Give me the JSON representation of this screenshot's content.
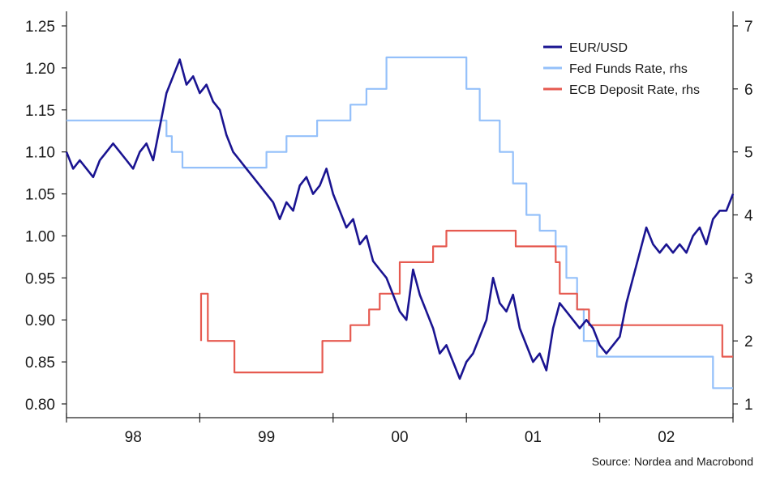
{
  "chart_data": {
    "type": "line",
    "title": "",
    "xlabel": "",
    "ylabel": "",
    "y_left": {
      "range": [
        0.8,
        1.25
      ],
      "ticks": [
        "0.80",
        "0.85",
        "0.90",
        "0.95",
        "1.00",
        "1.05",
        "1.10",
        "1.15",
        "1.20",
        "1.25"
      ]
    },
    "y_right": {
      "range": [
        1,
        7
      ],
      "ticks": [
        "1",
        "2",
        "3",
        "4",
        "5",
        "6",
        "7"
      ]
    },
    "x_range": [
      1997.5,
      2002.5
    ],
    "x_ticks": [
      1998,
      1999,
      2000,
      2001,
      2002,
      2003
    ],
    "x_labels": [
      {
        "label": "98",
        "at": 1998.0
      },
      {
        "label": "99",
        "at": 1999.0
      },
      {
        "label": "00",
        "at": 2000.0
      },
      {
        "label": "01",
        "at": 2001.0
      },
      {
        "label": "02",
        "at": 2002.0
      }
    ],
    "grid": false,
    "legend_position": "top-right",
    "series": [
      {
        "name": "EUR/USD",
        "axis": "left",
        "color": "#1a1491",
        "style": "line",
        "points": [
          [
            1997.5,
            1.1
          ],
          [
            1997.55,
            1.08
          ],
          [
            1997.6,
            1.09
          ],
          [
            1997.65,
            1.08
          ],
          [
            1997.7,
            1.07
          ],
          [
            1997.75,
            1.09
          ],
          [
            1997.8,
            1.1
          ],
          [
            1997.85,
            1.11
          ],
          [
            1997.9,
            1.1
          ],
          [
            1997.95,
            1.09
          ],
          [
            1998.0,
            1.08
          ],
          [
            1998.05,
            1.1
          ],
          [
            1998.1,
            1.11
          ],
          [
            1998.15,
            1.09
          ],
          [
            1998.2,
            1.13
          ],
          [
            1998.25,
            1.17
          ],
          [
            1998.3,
            1.19
          ],
          [
            1998.35,
            1.21
          ],
          [
            1998.4,
            1.18
          ],
          [
            1998.45,
            1.19
          ],
          [
            1998.5,
            1.17
          ],
          [
            1998.55,
            1.18
          ],
          [
            1998.6,
            1.16
          ],
          [
            1998.65,
            1.15
          ],
          [
            1998.7,
            1.12
          ],
          [
            1998.75,
            1.1
          ],
          [
            1998.8,
            1.09
          ],
          [
            1998.85,
            1.08
          ],
          [
            1998.9,
            1.07
          ],
          [
            1998.95,
            1.06
          ],
          [
            1999.0,
            1.05
          ],
          [
            1999.05,
            1.04
          ],
          [
            1999.1,
            1.02
          ],
          [
            1999.15,
            1.04
          ],
          [
            1999.2,
            1.03
          ],
          [
            1999.25,
            1.06
          ],
          [
            1999.3,
            1.07
          ],
          [
            1999.35,
            1.05
          ],
          [
            1999.4,
            1.06
          ],
          [
            1999.45,
            1.08
          ],
          [
            1999.5,
            1.05
          ],
          [
            1999.55,
            1.03
          ],
          [
            1999.6,
            1.01
          ],
          [
            1999.65,
            1.02
          ],
          [
            1999.7,
            0.99
          ],
          [
            1999.75,
            1.0
          ],
          [
            1999.8,
            0.97
          ],
          [
            1999.85,
            0.96
          ],
          [
            1999.9,
            0.95
          ],
          [
            1999.95,
            0.93
          ],
          [
            2000.0,
            0.91
          ],
          [
            2000.05,
            0.9
          ],
          [
            2000.1,
            0.96
          ],
          [
            2000.15,
            0.93
          ],
          [
            2000.2,
            0.91
          ],
          [
            2000.25,
            0.89
          ],
          [
            2000.3,
            0.86
          ],
          [
            2000.35,
            0.87
          ],
          [
            2000.4,
            0.85
          ],
          [
            2000.45,
            0.83
          ],
          [
            2000.5,
            0.85
          ],
          [
            2000.55,
            0.86
          ],
          [
            2000.6,
            0.88
          ],
          [
            2000.65,
            0.9
          ],
          [
            2000.7,
            0.95
          ],
          [
            2000.75,
            0.92
          ],
          [
            2000.8,
            0.91
          ],
          [
            2000.85,
            0.93
          ],
          [
            2000.9,
            0.89
          ],
          [
            2000.95,
            0.87
          ],
          [
            2001.0,
            0.85
          ],
          [
            2001.05,
            0.86
          ],
          [
            2001.1,
            0.84
          ],
          [
            2001.15,
            0.89
          ],
          [
            2001.2,
            0.92
          ],
          [
            2001.25,
            0.91
          ],
          [
            2001.3,
            0.9
          ],
          [
            2001.35,
            0.89
          ],
          [
            2001.4,
            0.9
          ],
          [
            2001.45,
            0.89
          ],
          [
            2001.5,
            0.87
          ],
          [
            2001.55,
            0.86
          ],
          [
            2001.6,
            0.87
          ],
          [
            2001.65,
            0.88
          ],
          [
            2001.7,
            0.92
          ],
          [
            2001.75,
            0.95
          ],
          [
            2001.8,
            0.98
          ],
          [
            2001.85,
            1.01
          ],
          [
            2001.9,
            0.99
          ],
          [
            2001.95,
            0.98
          ],
          [
            2002.0,
            0.99
          ],
          [
            2002.05,
            0.98
          ],
          [
            2002.1,
            0.99
          ],
          [
            2002.15,
            0.98
          ],
          [
            2002.2,
            1.0
          ],
          [
            2002.25,
            1.01
          ],
          [
            2002.3,
            0.99
          ],
          [
            2002.35,
            1.02
          ],
          [
            2002.4,
            1.03
          ],
          [
            2002.45,
            1.03
          ],
          [
            2002.5,
            1.05
          ]
        ]
      },
      {
        "name": "Fed Funds Rate, rhs",
        "axis": "right",
        "color": "#94c0fa",
        "style": "step",
        "points": [
          [
            1997.5,
            5.5
          ],
          [
            1998.25,
            5.5
          ],
          [
            1998.25,
            5.25
          ],
          [
            1998.29,
            5.25
          ],
          [
            1998.29,
            5.0
          ],
          [
            1998.37,
            5.0
          ],
          [
            1998.37,
            4.75
          ],
          [
            1999.0,
            4.75
          ],
          [
            1999.0,
            5.0
          ],
          [
            1999.15,
            5.0
          ],
          [
            1999.15,
            5.25
          ],
          [
            1999.38,
            5.25
          ],
          [
            1999.38,
            5.5
          ],
          [
            1999.63,
            5.5
          ],
          [
            1999.63,
            5.75
          ],
          [
            1999.75,
            5.75
          ],
          [
            1999.75,
            6.0
          ],
          [
            1999.9,
            6.0
          ],
          [
            1999.9,
            6.5
          ],
          [
            2000.5,
            6.5
          ],
          [
            2000.5,
            6.0
          ],
          [
            2000.6,
            6.0
          ],
          [
            2000.6,
            5.5
          ],
          [
            2000.75,
            5.5
          ],
          [
            2000.75,
            5.0
          ],
          [
            2000.85,
            5.0
          ],
          [
            2000.85,
            4.5
          ],
          [
            2000.95,
            4.5
          ],
          [
            2000.95,
            4.0
          ],
          [
            2001.05,
            4.0
          ],
          [
            2001.05,
            3.75
          ],
          [
            2001.17,
            3.75
          ],
          [
            2001.17,
            3.5
          ],
          [
            2001.25,
            3.5
          ],
          [
            2001.25,
            3.0
          ],
          [
            2001.33,
            3.0
          ],
          [
            2001.33,
            2.5
          ],
          [
            2001.38,
            2.5
          ],
          [
            2001.38,
            2.0
          ],
          [
            2001.48,
            2.0
          ],
          [
            2001.48,
            1.75
          ],
          [
            2002.35,
            1.75
          ],
          [
            2002.35,
            1.25
          ],
          [
            2002.5,
            1.25
          ]
        ]
      },
      {
        "name": "ECB Deposit Rate, rhs",
        "axis": "right",
        "color": "#e65a50",
        "style": "step",
        "points": [
          [
            1998.51,
            2.0
          ],
          [
            1998.51,
            2.75
          ],
          [
            1998.56,
            2.75
          ],
          [
            1998.56,
            2.0
          ],
          [
            1998.76,
            2.0
          ],
          [
            1998.76,
            1.5
          ],
          [
            1999.42,
            1.5
          ],
          [
            1999.42,
            2.0
          ],
          [
            1999.63,
            2.0
          ],
          [
            1999.63,
            2.25
          ],
          [
            1999.77,
            2.25
          ],
          [
            1999.77,
            2.5
          ],
          [
            1999.85,
            2.5
          ],
          [
            1999.85,
            2.75
          ],
          [
            2000.0,
            2.75
          ],
          [
            2000.0,
            3.25
          ],
          [
            2000.25,
            3.25
          ],
          [
            2000.25,
            3.5
          ],
          [
            2000.35,
            3.5
          ],
          [
            2000.35,
            3.75
          ],
          [
            2000.87,
            3.75
          ],
          [
            2000.87,
            3.5
          ],
          [
            2001.17,
            3.5
          ],
          [
            2001.17,
            3.25
          ],
          [
            2001.2,
            3.25
          ],
          [
            2001.2,
            2.75
          ],
          [
            2001.33,
            2.75
          ],
          [
            2001.33,
            2.5
          ],
          [
            2001.42,
            2.5
          ],
          [
            2001.42,
            2.25
          ],
          [
            2002.42,
            2.25
          ],
          [
            2002.42,
            1.75
          ],
          [
            2002.5,
            1.75
          ]
        ]
      }
    ]
  },
  "source": "Source: Nordea and Macrobond"
}
